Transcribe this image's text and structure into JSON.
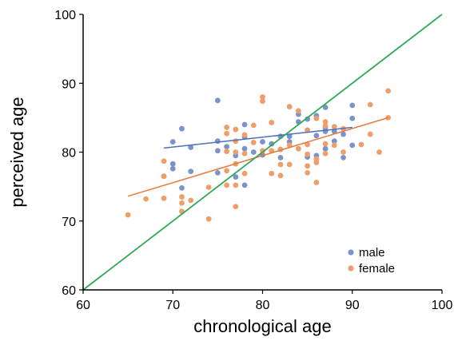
{
  "chart_data": {
    "type": "scatter",
    "title": "",
    "xlabel": "chronological age",
    "ylabel": "perceived age",
    "xlim": [
      60,
      100
    ],
    "ylim": [
      60,
      100
    ],
    "xticks": [
      "60",
      "70",
      "80",
      "90",
      "100"
    ],
    "yticks": [
      "60",
      "70",
      "80",
      "90",
      "100"
    ],
    "grid": false,
    "legend_position": "bottom-right",
    "identity_line": {
      "from": [
        60,
        60
      ],
      "to": [
        100,
        100
      ],
      "color": "#2eaa57"
    },
    "series": [
      {
        "name": "male",
        "color": "#7b93cb",
        "trend": {
          "from": [
            69,
            80.6
          ],
          "to": [
            90,
            83.6
          ]
        },
        "points": [
          [
            69,
            76.5
          ],
          [
            70,
            81.5
          ],
          [
            70,
            78.3
          ],
          [
            70,
            77.6
          ],
          [
            71,
            83.4
          ],
          [
            71,
            74.8
          ],
          [
            72,
            80.7
          ],
          [
            72,
            77.2
          ],
          [
            75,
            87.5
          ],
          [
            75,
            81.6
          ],
          [
            75,
            80.2
          ],
          [
            75,
            77.0
          ],
          [
            76,
            80.8
          ],
          [
            77,
            79.5
          ],
          [
            77,
            76.4
          ],
          [
            78,
            84.0
          ],
          [
            78,
            82.2
          ],
          [
            78,
            80.5
          ],
          [
            78,
            75.2
          ],
          [
            79,
            80.0
          ],
          [
            80,
            81.5
          ],
          [
            80,
            79.6
          ],
          [
            81,
            81.2
          ],
          [
            82,
            82.3
          ],
          [
            82,
            79.2
          ],
          [
            82,
            80.4
          ],
          [
            83,
            82.3
          ],
          [
            83,
            81.5
          ],
          [
            84,
            85.5
          ],
          [
            84,
            84.4
          ],
          [
            85,
            84.8
          ],
          [
            85,
            83.2
          ],
          [
            85,
            79.3
          ],
          [
            86,
            85.3
          ],
          [
            86,
            82.4
          ],
          [
            86,
            79.5
          ],
          [
            87,
            86.5
          ],
          [
            87,
            83.5
          ],
          [
            87,
            83.0
          ],
          [
            87,
            80.5
          ],
          [
            88,
            83.0
          ],
          [
            88,
            81.6
          ],
          [
            89,
            82.6
          ],
          [
            89,
            79.2
          ],
          [
            90,
            86.8
          ],
          [
            90,
            84.9
          ],
          [
            90,
            81.0
          ]
        ]
      },
      {
        "name": "female",
        "color": "#ef9e6b",
        "trend": {
          "from": [
            65,
            73.6
          ],
          "to": [
            94,
            85.0
          ]
        },
        "points": [
          [
            65,
            70.9
          ],
          [
            67,
            73.2
          ],
          [
            69,
            78.7
          ],
          [
            69,
            76.5
          ],
          [
            69,
            73.3
          ],
          [
            71,
            73.5
          ],
          [
            71,
            72.6
          ],
          [
            71,
            71.4
          ],
          [
            72,
            73.0
          ],
          [
            74,
            74.9
          ],
          [
            74,
            70.3
          ],
          [
            76,
            83.6
          ],
          [
            76,
            82.7
          ],
          [
            76,
            80.1
          ],
          [
            76,
            77.3
          ],
          [
            76,
            75.2
          ],
          [
            77,
            83.3
          ],
          [
            77,
            81.6
          ],
          [
            77,
            80.0
          ],
          [
            77,
            78.3
          ],
          [
            77,
            75.2
          ],
          [
            77,
            72.1
          ],
          [
            78,
            82.5
          ],
          [
            78,
            79.8
          ],
          [
            78,
            76.9
          ],
          [
            79,
            83.9
          ],
          [
            79,
            81.4
          ],
          [
            80,
            88.0
          ],
          [
            80,
            87.4
          ],
          [
            80,
            80.2
          ],
          [
            81,
            84.3
          ],
          [
            81,
            80.2
          ],
          [
            81,
            76.9
          ],
          [
            82,
            80.4
          ],
          [
            82,
            78.2
          ],
          [
            82,
            76.6
          ],
          [
            83,
            86.6
          ],
          [
            83,
            81.0
          ],
          [
            83,
            78.2
          ],
          [
            84,
            86.0
          ],
          [
            84,
            80.5
          ],
          [
            85,
            83.2
          ],
          [
            85,
            81.1
          ],
          [
            85,
            79.7
          ],
          [
            85,
            78.0
          ],
          [
            85,
            77.0
          ],
          [
            86,
            84.9
          ],
          [
            86,
            79.0
          ],
          [
            86,
            78.5
          ],
          [
            86,
            75.6
          ],
          [
            87,
            84.4
          ],
          [
            87,
            83.8
          ],
          [
            87,
            81.2
          ],
          [
            87,
            79.8
          ],
          [
            88,
            83.7
          ],
          [
            88,
            81.0
          ],
          [
            89,
            83.4
          ],
          [
            89,
            80.0
          ],
          [
            91,
            81.1
          ],
          [
            92,
            86.9
          ],
          [
            92,
            82.6
          ],
          [
            93,
            80.0
          ],
          [
            94,
            88.9
          ],
          [
            94,
            85.0
          ]
        ]
      }
    ]
  }
}
